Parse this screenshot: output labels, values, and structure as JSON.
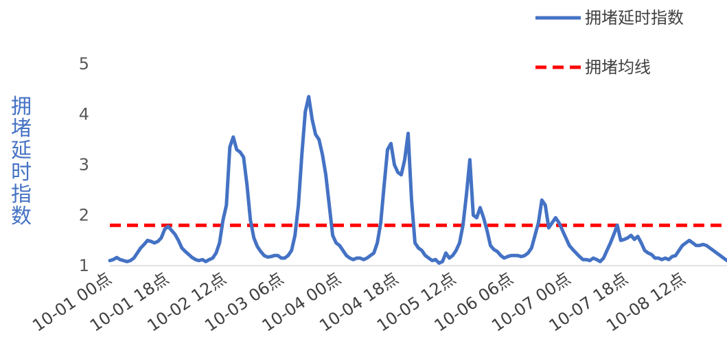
{
  "chart_data": {
    "type": "line",
    "title": "",
    "ylabel": "拥堵延时指数",
    "xlabel": "",
    "ylim": [
      1,
      5
    ],
    "yticks": [
      "1",
      "2",
      "3",
      "4",
      "5"
    ],
    "grid": false,
    "legend_position": "top-right",
    "x_tick_labels": [
      "10-01 00点",
      "10-01 18点",
      "10-02 12点",
      "10-03 06点",
      "10-04 00点",
      "10-04 18点",
      "10-05 12点",
      "10-06 06点",
      "10-07 00点",
      "10-07 18点",
      "10-08 12点"
    ],
    "series": [
      {
        "name": "拥堵延时指数",
        "color": "#4472C4",
        "style": "solid",
        "values": [
          1.1,
          1.12,
          1.16,
          1.12,
          1.1,
          1.08,
          1.1,
          1.15,
          1.25,
          1.35,
          1.42,
          1.5,
          1.48,
          1.45,
          1.48,
          1.55,
          1.72,
          1.78,
          1.7,
          1.62,
          1.5,
          1.35,
          1.28,
          1.22,
          1.16,
          1.12,
          1.1,
          1.12,
          1.08,
          1.12,
          1.15,
          1.25,
          1.45,
          1.9,
          2.2,
          3.35,
          3.55,
          3.3,
          3.25,
          3.15,
          2.6,
          1.9,
          1.55,
          1.38,
          1.28,
          1.2,
          1.17,
          1.18,
          1.2,
          1.2,
          1.15,
          1.15,
          1.2,
          1.3,
          1.6,
          2.2,
          3.2,
          4.05,
          4.35,
          3.9,
          3.6,
          3.5,
          3.2,
          2.8,
          2.2,
          1.6,
          1.45,
          1.4,
          1.3,
          1.2,
          1.15,
          1.12,
          1.15,
          1.15,
          1.12,
          1.15,
          1.2,
          1.25,
          1.45,
          1.85,
          2.6,
          3.3,
          3.42,
          3.0,
          2.85,
          2.8,
          3.1,
          3.62,
          2.3,
          1.45,
          1.35,
          1.3,
          1.2,
          1.15,
          1.1,
          1.12,
          1.05,
          1.08,
          1.25,
          1.15,
          1.2,
          1.3,
          1.45,
          1.8,
          2.4,
          3.1,
          2.0,
          1.95,
          2.15,
          1.95,
          1.7,
          1.4,
          1.32,
          1.28,
          1.2,
          1.15,
          1.18,
          1.2,
          1.2,
          1.2,
          1.18,
          1.2,
          1.25,
          1.35,
          1.6,
          1.85,
          2.3,
          2.2,
          1.75,
          1.85,
          1.95,
          1.85,
          1.7,
          1.55,
          1.4,
          1.32,
          1.25,
          1.18,
          1.12,
          1.12,
          1.1,
          1.15,
          1.12,
          1.08,
          1.15,
          1.3,
          1.45,
          1.62,
          1.8,
          1.5,
          1.52,
          1.55,
          1.6,
          1.52,
          1.58,
          1.45,
          1.3,
          1.25,
          1.22,
          1.15,
          1.15,
          1.12,
          1.15,
          1.12,
          1.18,
          1.2,
          1.3,
          1.4,
          1.45,
          1.5,
          1.45,
          1.4,
          1.4,
          1.42,
          1.4,
          1.35,
          1.3,
          1.25,
          1.2,
          1.15,
          1.1
        ]
      },
      {
        "name": "拥堵均线",
        "color": "#FF0000",
        "style": "dashed",
        "constant": 1.8
      }
    ]
  }
}
